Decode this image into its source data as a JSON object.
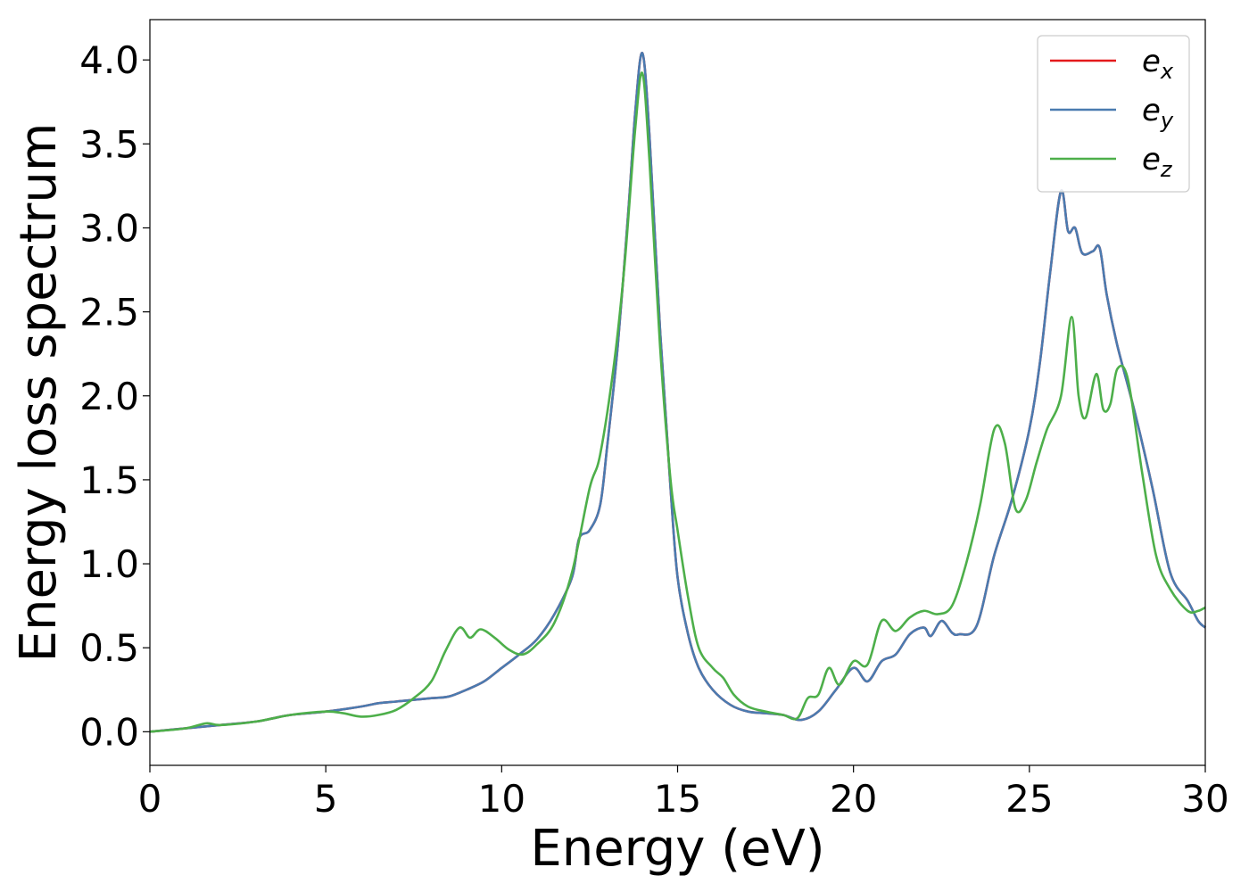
{
  "chart_data": {
    "type": "line",
    "title": "",
    "xlabel": "Energy (eV)",
    "ylabel": "Energy loss spectrum",
    "xlim": [
      0,
      30
    ],
    "ylim": [
      -0.2,
      4.24
    ],
    "xticks": [
      0,
      5,
      10,
      15,
      20,
      25,
      30
    ],
    "xtick_labels": [
      "0",
      "5",
      "10",
      "15",
      "20",
      "25",
      "30"
    ],
    "yticks": [
      0.0,
      0.5,
      1.0,
      1.5,
      2.0,
      2.5,
      3.0,
      3.5,
      4.0
    ],
    "ytick_labels": [
      "0.0",
      "0.5",
      "1.0",
      "1.5",
      "2.0",
      "2.5",
      "3.0",
      "3.5",
      "4.0"
    ],
    "grid": false,
    "legend_position": "top-right",
    "series": [
      {
        "name_main": "e",
        "name_sub": "x",
        "color": "#e41a1c",
        "x": [
          0,
          1,
          2,
          3,
          3.5,
          4,
          5,
          6,
          6.5,
          7,
          7.5,
          8,
          8.5,
          9,
          9.5,
          10,
          10.5,
          11,
          11.5,
          12,
          12.2,
          12.5,
          12.8,
          13,
          13.3,
          13.6,
          13.8,
          14.0,
          14.2,
          14.5,
          14.8,
          15,
          15.3,
          15.6,
          16,
          16.5,
          17,
          17.5,
          18,
          18.5,
          19,
          19.5,
          20,
          20.4,
          20.8,
          21.2,
          21.6,
          22,
          22.2,
          22.5,
          22.8,
          23,
          23.5,
          24,
          24.5,
          25,
          25.3,
          25.6,
          25.9,
          26.1,
          26.3,
          26.5,
          26.8,
          27.0,
          27.2,
          27.5,
          28,
          28.5,
          29,
          29.5,
          29.8,
          30
        ],
        "values": [
          0.0,
          0.02,
          0.04,
          0.06,
          0.08,
          0.1,
          0.12,
          0.15,
          0.17,
          0.18,
          0.19,
          0.2,
          0.21,
          0.25,
          0.3,
          0.38,
          0.46,
          0.55,
          0.7,
          0.92,
          1.15,
          1.2,
          1.35,
          1.7,
          2.3,
          3.1,
          3.7,
          4.04,
          3.55,
          2.4,
          1.45,
          0.92,
          0.58,
          0.38,
          0.25,
          0.16,
          0.12,
          0.11,
          0.1,
          0.07,
          0.12,
          0.25,
          0.38,
          0.3,
          0.42,
          0.46,
          0.58,
          0.62,
          0.57,
          0.66,
          0.59,
          0.58,
          0.63,
          1.05,
          1.38,
          1.8,
          2.2,
          2.75,
          3.22,
          2.98,
          3.0,
          2.85,
          2.86,
          2.88,
          2.6,
          2.3,
          1.9,
          1.45,
          0.95,
          0.78,
          0.66,
          0.62
        ]
      },
      {
        "name_main": "e",
        "name_sub": "y",
        "color": "#4a7bb0",
        "x": [
          0,
          1,
          2,
          3,
          3.5,
          4,
          5,
          6,
          6.5,
          7,
          7.5,
          8,
          8.5,
          9,
          9.5,
          10,
          10.5,
          11,
          11.5,
          12,
          12.2,
          12.5,
          12.8,
          13,
          13.3,
          13.6,
          13.8,
          14.0,
          14.2,
          14.5,
          14.8,
          15,
          15.3,
          15.6,
          16,
          16.5,
          17,
          17.5,
          18,
          18.5,
          19,
          19.5,
          20,
          20.4,
          20.8,
          21.2,
          21.6,
          22,
          22.2,
          22.5,
          22.8,
          23,
          23.5,
          24,
          24.5,
          25,
          25.3,
          25.6,
          25.9,
          26.1,
          26.3,
          26.5,
          26.8,
          27.0,
          27.2,
          27.5,
          28,
          28.5,
          29,
          29.5,
          29.8,
          30
        ],
        "values": [
          0.0,
          0.02,
          0.04,
          0.06,
          0.08,
          0.1,
          0.12,
          0.15,
          0.17,
          0.18,
          0.19,
          0.2,
          0.21,
          0.25,
          0.3,
          0.38,
          0.46,
          0.55,
          0.7,
          0.92,
          1.15,
          1.2,
          1.35,
          1.7,
          2.3,
          3.1,
          3.7,
          4.04,
          3.55,
          2.4,
          1.45,
          0.92,
          0.58,
          0.38,
          0.25,
          0.16,
          0.12,
          0.11,
          0.1,
          0.07,
          0.12,
          0.25,
          0.38,
          0.3,
          0.42,
          0.46,
          0.58,
          0.62,
          0.57,
          0.66,
          0.59,
          0.58,
          0.63,
          1.05,
          1.38,
          1.8,
          2.2,
          2.75,
          3.22,
          2.98,
          3.0,
          2.85,
          2.86,
          2.88,
          2.6,
          2.3,
          1.9,
          1.45,
          0.95,
          0.78,
          0.66,
          0.62
        ]
      },
      {
        "name_main": "e",
        "name_sub": "z",
        "color": "#4daf4a",
        "x": [
          0,
          1,
          1.6,
          2,
          3,
          4,
          5,
          5.5,
          6,
          6.5,
          7,
          7.5,
          8,
          8.4,
          8.8,
          9.1,
          9.4,
          9.8,
          10.2,
          10.6,
          11,
          11.5,
          12,
          12.5,
          12.8,
          13.2,
          13.5,
          13.8,
          14.0,
          14.2,
          14.5,
          14.8,
          15,
          15.3,
          15.6,
          16,
          16.3,
          16.6,
          17,
          17.5,
          18,
          18.4,
          18.7,
          19,
          19.3,
          19.6,
          20,
          20.4,
          20.8,
          21.2,
          21.6,
          22,
          22.4,
          22.8,
          23.2,
          23.6,
          24,
          24.3,
          24.6,
          24.9,
          25.2,
          25.5,
          25.9,
          26.2,
          26.4,
          26.6,
          26.9,
          27.1,
          27.3,
          27.5,
          27.8,
          28.2,
          28.6,
          29,
          29.5,
          29.8,
          30
        ],
        "values": [
          0.0,
          0.02,
          0.05,
          0.04,
          0.06,
          0.1,
          0.12,
          0.11,
          0.09,
          0.1,
          0.13,
          0.2,
          0.3,
          0.48,
          0.62,
          0.56,
          0.61,
          0.56,
          0.49,
          0.46,
          0.52,
          0.65,
          0.95,
          1.45,
          1.65,
          2.2,
          2.8,
          3.6,
          3.92,
          3.4,
          2.3,
          1.5,
          1.2,
          0.8,
          0.5,
          0.38,
          0.32,
          0.22,
          0.15,
          0.12,
          0.1,
          0.08,
          0.2,
          0.22,
          0.38,
          0.28,
          0.42,
          0.4,
          0.66,
          0.6,
          0.68,
          0.72,
          0.7,
          0.75,
          1.0,
          1.35,
          1.8,
          1.72,
          1.33,
          1.38,
          1.6,
          1.8,
          2.0,
          2.47,
          2.0,
          1.87,
          2.13,
          1.92,
          1.95,
          2.16,
          2.1,
          1.55,
          1.05,
          0.85,
          0.72,
          0.72,
          0.74
        ]
      }
    ]
  }
}
